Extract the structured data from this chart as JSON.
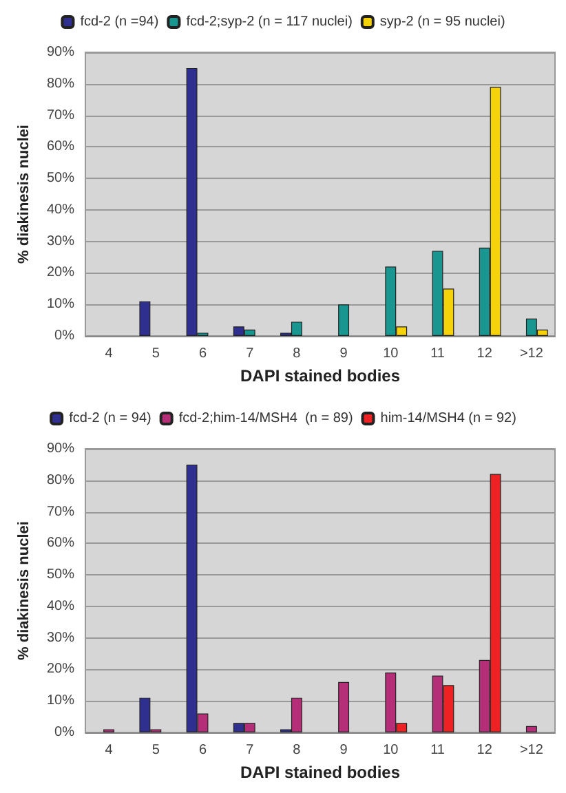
{
  "chart_data": [
    {
      "type": "bar",
      "xlabel": "DAPI stained bodies",
      "ylabel": "% diakinesis nuclei",
      "categories": [
        "4",
        "5",
        "6",
        "7",
        "8",
        "9",
        "10",
        "11",
        "12",
        ">12"
      ],
      "series": [
        {
          "name": "fcd-2 (n =94)",
          "color": "#2e2f8f",
          "values": [
            null,
            11,
            85,
            3,
            1,
            null,
            null,
            null,
            null,
            null
          ]
        },
        {
          "name": "fcd-2;syp-2 (n = 117 nuclei)",
          "color": "#1a9690",
          "values": [
            null,
            null,
            1,
            2,
            4.5,
            10,
            22,
            27,
            28,
            5.5
          ]
        },
        {
          "name": "syp-2 (n = 95 nuclei)",
          "color": "#f5d20a",
          "values": [
            null,
            null,
            null,
            null,
            null,
            null,
            3,
            15,
            79,
            2
          ]
        }
      ],
      "ylim": [
        0,
        90
      ],
      "yticks": [
        {
          "value": 0,
          "label": "0%"
        },
        {
          "value": 10,
          "label": "10%"
        },
        {
          "value": 20,
          "label": "20%"
        },
        {
          "value": 30,
          "label": "30%"
        },
        {
          "value": 40,
          "label": "40%"
        },
        {
          "value": 50,
          "label": "50%"
        },
        {
          "value": 60,
          "label": "60%"
        },
        {
          "value": 70,
          "label": "70%"
        },
        {
          "value": 80,
          "label": "80%"
        },
        {
          "value": 90,
          "label": "90%"
        }
      ],
      "grid": "y",
      "legend": "top"
    },
    {
      "type": "bar",
      "xlabel": "DAPI stained bodies",
      "ylabel": "% diakinesis nuclei",
      "categories": [
        "4",
        "5",
        "6",
        "7",
        "8",
        "9",
        "10",
        "11",
        "12",
        ">12"
      ],
      "series": [
        {
          "name": "fcd-2 (n = 94)",
          "color": "#2e2f8f",
          "values": [
            null,
            11,
            85,
            3,
            1,
            null,
            null,
            null,
            null,
            null
          ]
        },
        {
          "name": "fcd-2;him-14/MSH4  (n = 89)",
          "color": "#b52f78",
          "values": [
            1,
            1,
            6,
            3,
            11,
            16,
            19,
            18,
            23,
            2
          ]
        },
        {
          "name": "him-14/MSH4 (n = 92)",
          "color": "#ee2222",
          "values": [
            null,
            null,
            null,
            null,
            null,
            null,
            3,
            15,
            82,
            null
          ]
        }
      ],
      "ylim": [
        0,
        90
      ],
      "yticks": [
        {
          "value": 0,
          "label": "0%"
        },
        {
          "value": 10,
          "label": "10%"
        },
        {
          "value": 20,
          "label": "20%"
        },
        {
          "value": 30,
          "label": "30%"
        },
        {
          "value": 40,
          "label": "40%"
        },
        {
          "value": 50,
          "label": "50%"
        },
        {
          "value": 60,
          "label": "60%"
        },
        {
          "value": 70,
          "label": "70%"
        },
        {
          "value": 80,
          "label": "80%"
        },
        {
          "value": 90,
          "label": "90%"
        }
      ],
      "grid": "y",
      "legend": "top"
    }
  ]
}
